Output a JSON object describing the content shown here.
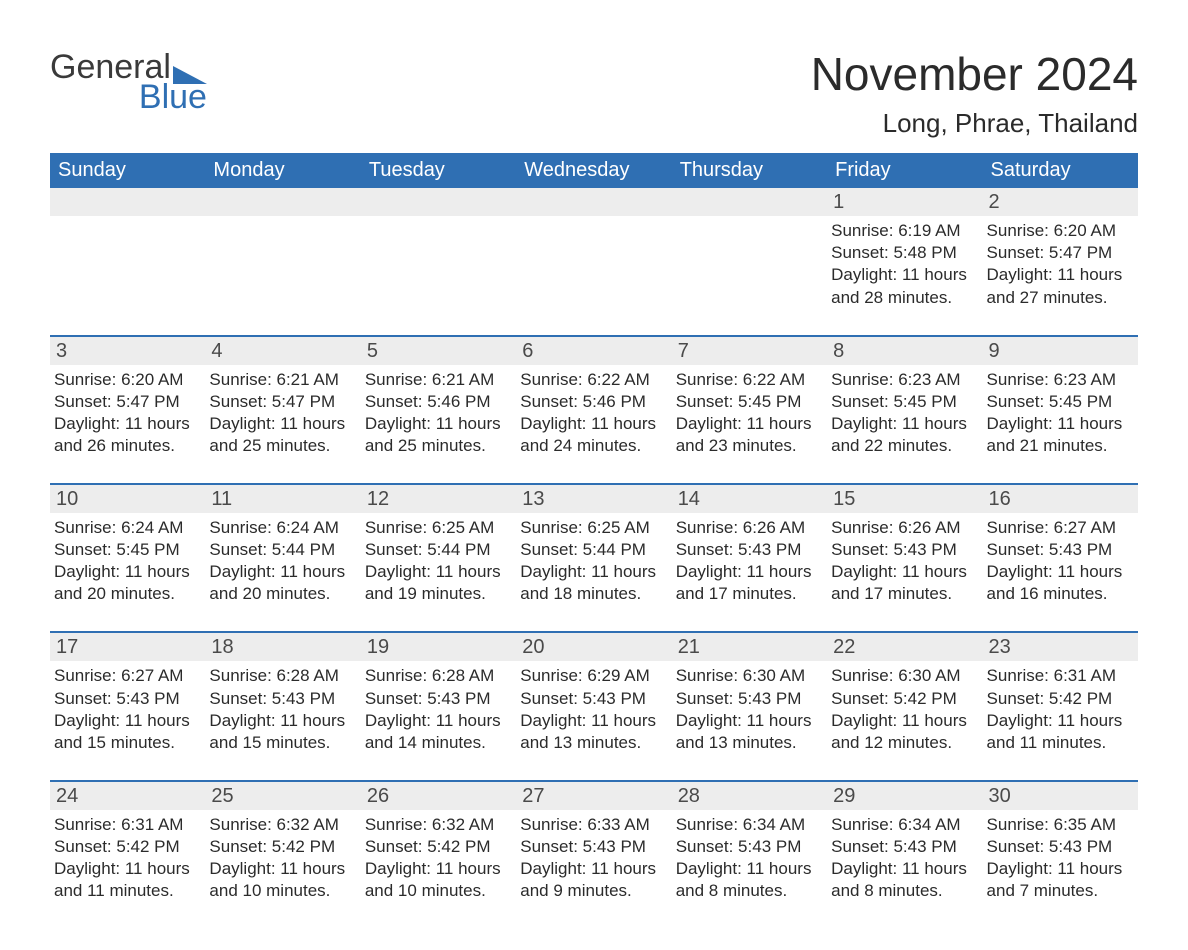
{
  "logo": {
    "top": "General",
    "bottom": "Blue",
    "icon_color": "#2f6fb3",
    "top_color": "#3a3a3a",
    "bottom_color": "#2f6fb3"
  },
  "title": {
    "month": "November 2024",
    "location": "Long, Phrae, Thailand"
  },
  "colors": {
    "header_bg": "#2f6fb3",
    "header_text": "#ffffff",
    "daynum_bg": "#ededed",
    "week_divider": "#2f6fb3",
    "text": "#2b2b2b"
  },
  "day_names": [
    "Sunday",
    "Monday",
    "Tuesday",
    "Wednesday",
    "Thursday",
    "Friday",
    "Saturday"
  ],
  "weeks": [
    [
      {
        "blank": true
      },
      {
        "blank": true
      },
      {
        "blank": true
      },
      {
        "blank": true
      },
      {
        "blank": true
      },
      {
        "day": "1",
        "sunrise": "Sunrise: 6:19 AM",
        "sunset": "Sunset: 5:48 PM",
        "daylight": "Daylight: 11 hours and 28 minutes."
      },
      {
        "day": "2",
        "sunrise": "Sunrise: 6:20 AM",
        "sunset": "Sunset: 5:47 PM",
        "daylight": "Daylight: 11 hours and 27 minutes."
      }
    ],
    [
      {
        "day": "3",
        "sunrise": "Sunrise: 6:20 AM",
        "sunset": "Sunset: 5:47 PM",
        "daylight": "Daylight: 11 hours and 26 minutes."
      },
      {
        "day": "4",
        "sunrise": "Sunrise: 6:21 AM",
        "sunset": "Sunset: 5:47 PM",
        "daylight": "Daylight: 11 hours and 25 minutes."
      },
      {
        "day": "5",
        "sunrise": "Sunrise: 6:21 AM",
        "sunset": "Sunset: 5:46 PM",
        "daylight": "Daylight: 11 hours and 25 minutes."
      },
      {
        "day": "6",
        "sunrise": "Sunrise: 6:22 AM",
        "sunset": "Sunset: 5:46 PM",
        "daylight": "Daylight: 11 hours and 24 minutes."
      },
      {
        "day": "7",
        "sunrise": "Sunrise: 6:22 AM",
        "sunset": "Sunset: 5:45 PM",
        "daylight": "Daylight: 11 hours and 23 minutes."
      },
      {
        "day": "8",
        "sunrise": "Sunrise: 6:23 AM",
        "sunset": "Sunset: 5:45 PM",
        "daylight": "Daylight: 11 hours and 22 minutes."
      },
      {
        "day": "9",
        "sunrise": "Sunrise: 6:23 AM",
        "sunset": "Sunset: 5:45 PM",
        "daylight": "Daylight: 11 hours and 21 minutes."
      }
    ],
    [
      {
        "day": "10",
        "sunrise": "Sunrise: 6:24 AM",
        "sunset": "Sunset: 5:45 PM",
        "daylight": "Daylight: 11 hours and 20 minutes."
      },
      {
        "day": "11",
        "sunrise": "Sunrise: 6:24 AM",
        "sunset": "Sunset: 5:44 PM",
        "daylight": "Daylight: 11 hours and 20 minutes."
      },
      {
        "day": "12",
        "sunrise": "Sunrise: 6:25 AM",
        "sunset": "Sunset: 5:44 PM",
        "daylight": "Daylight: 11 hours and 19 minutes."
      },
      {
        "day": "13",
        "sunrise": "Sunrise: 6:25 AM",
        "sunset": "Sunset: 5:44 PM",
        "daylight": "Daylight: 11 hours and 18 minutes."
      },
      {
        "day": "14",
        "sunrise": "Sunrise: 6:26 AM",
        "sunset": "Sunset: 5:43 PM",
        "daylight": "Daylight: 11 hours and 17 minutes."
      },
      {
        "day": "15",
        "sunrise": "Sunrise: 6:26 AM",
        "sunset": "Sunset: 5:43 PM",
        "daylight": "Daylight: 11 hours and 17 minutes."
      },
      {
        "day": "16",
        "sunrise": "Sunrise: 6:27 AM",
        "sunset": "Sunset: 5:43 PM",
        "daylight": "Daylight: 11 hours and 16 minutes."
      }
    ],
    [
      {
        "day": "17",
        "sunrise": "Sunrise: 6:27 AM",
        "sunset": "Sunset: 5:43 PM",
        "daylight": "Daylight: 11 hours and 15 minutes."
      },
      {
        "day": "18",
        "sunrise": "Sunrise: 6:28 AM",
        "sunset": "Sunset: 5:43 PM",
        "daylight": "Daylight: 11 hours and 15 minutes."
      },
      {
        "day": "19",
        "sunrise": "Sunrise: 6:28 AM",
        "sunset": "Sunset: 5:43 PM",
        "daylight": "Daylight: 11 hours and 14 minutes."
      },
      {
        "day": "20",
        "sunrise": "Sunrise: 6:29 AM",
        "sunset": "Sunset: 5:43 PM",
        "daylight": "Daylight: 11 hours and 13 minutes."
      },
      {
        "day": "21",
        "sunrise": "Sunrise: 6:30 AM",
        "sunset": "Sunset: 5:43 PM",
        "daylight": "Daylight: 11 hours and 13 minutes."
      },
      {
        "day": "22",
        "sunrise": "Sunrise: 6:30 AM",
        "sunset": "Sunset: 5:42 PM",
        "daylight": "Daylight: 11 hours and 12 minutes."
      },
      {
        "day": "23",
        "sunrise": "Sunrise: 6:31 AM",
        "sunset": "Sunset: 5:42 PM",
        "daylight": "Daylight: 11 hours and 11 minutes."
      }
    ],
    [
      {
        "day": "24",
        "sunrise": "Sunrise: 6:31 AM",
        "sunset": "Sunset: 5:42 PM",
        "daylight": "Daylight: 11 hours and 11 minutes."
      },
      {
        "day": "25",
        "sunrise": "Sunrise: 6:32 AM",
        "sunset": "Sunset: 5:42 PM",
        "daylight": "Daylight: 11 hours and 10 minutes."
      },
      {
        "day": "26",
        "sunrise": "Sunrise: 6:32 AM",
        "sunset": "Sunset: 5:42 PM",
        "daylight": "Daylight: 11 hours and 10 minutes."
      },
      {
        "day": "27",
        "sunrise": "Sunrise: 6:33 AM",
        "sunset": "Sunset: 5:43 PM",
        "daylight": "Daylight: 11 hours and 9 minutes."
      },
      {
        "day": "28",
        "sunrise": "Sunrise: 6:34 AM",
        "sunset": "Sunset: 5:43 PM",
        "daylight": "Daylight: 11 hours and 8 minutes."
      },
      {
        "day": "29",
        "sunrise": "Sunrise: 6:34 AM",
        "sunset": "Sunset: 5:43 PM",
        "daylight": "Daylight: 11 hours and 8 minutes."
      },
      {
        "day": "30",
        "sunrise": "Sunrise: 6:35 AM",
        "sunset": "Sunset: 5:43 PM",
        "daylight": "Daylight: 11 hours and 7 minutes."
      }
    ]
  ]
}
